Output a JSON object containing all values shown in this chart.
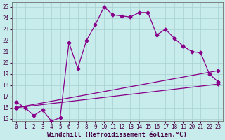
{
  "xlabel": "Windchill (Refroidissement éolien,°C)",
  "xlim": [
    -0.5,
    23.5
  ],
  "ylim": [
    14.8,
    25.4
  ],
  "yticks": [
    15,
    16,
    17,
    18,
    19,
    20,
    21,
    22,
    23,
    24,
    25
  ],
  "xticks": [
    0,
    1,
    2,
    3,
    4,
    5,
    6,
    7,
    8,
    9,
    10,
    11,
    12,
    13,
    14,
    15,
    16,
    17,
    18,
    19,
    20,
    21,
    22,
    23
  ],
  "background_color": "#c8ecec",
  "grid_color": "#a8d0d0",
  "line_color": "#880088",
  "series1_x": [
    0,
    1,
    2,
    3,
    4,
    5,
    6,
    7,
    8,
    9,
    10,
    11,
    12,
    13,
    14,
    15,
    16,
    17,
    18,
    19,
    20,
    21,
    22,
    23
  ],
  "series1_y": [
    16.5,
    16.0,
    15.3,
    15.8,
    14.8,
    15.1,
    21.8,
    19.5,
    22.0,
    23.4,
    25.0,
    24.3,
    24.2,
    24.1,
    24.5,
    24.5,
    22.5,
    23.0,
    22.2,
    21.5,
    21.0,
    20.9,
    19.0,
    18.3
  ],
  "series2_x": [
    0,
    23
  ],
  "series2_y": [
    16.0,
    18.1
  ],
  "series3_x": [
    0,
    23
  ],
  "series3_y": [
    16.0,
    19.3
  ],
  "marker": "D",
  "markersize": 2.5,
  "linewidth": 0.9,
  "label_fontsize": 6.5,
  "tick_fontsize": 5.5
}
